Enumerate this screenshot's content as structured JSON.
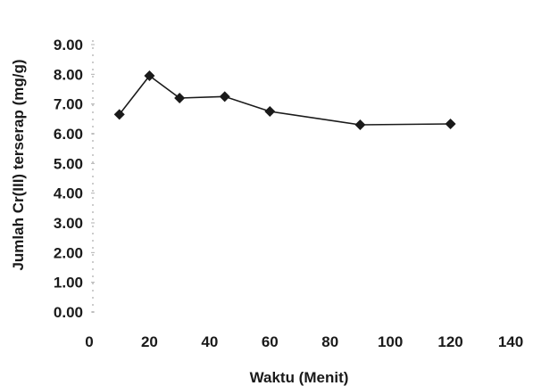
{
  "chart_data": {
    "type": "line",
    "title": "",
    "xlabel": "Waktu (Menit)",
    "ylabel": "Jumlah Cr(III) terserap (mg/g)",
    "xlim": [
      0,
      140
    ],
    "ylim": [
      0,
      9
    ],
    "x_ticks": [
      "0",
      "20",
      "40",
      "60",
      "80",
      "100",
      "120",
      "140"
    ],
    "y_ticks": [
      "0.00",
      "1.00",
      "2.00",
      "3.00",
      "4.00",
      "5.00",
      "6.00",
      "7.00",
      "8.00",
      "9.00"
    ],
    "grid": false,
    "legend": "none",
    "series": [
      {
        "marker": "diamond",
        "color": "#1a1a1a",
        "points": [
          {
            "x": 10,
            "y": 6.65
          },
          {
            "x": 20,
            "y": 7.95
          },
          {
            "x": 30,
            "y": 7.2
          },
          {
            "x": 45,
            "y": 7.25
          },
          {
            "x": 60,
            "y": 6.75
          },
          {
            "x": 90,
            "y": 6.3
          },
          {
            "x": 120,
            "y": 6.33
          }
        ]
      }
    ]
  }
}
